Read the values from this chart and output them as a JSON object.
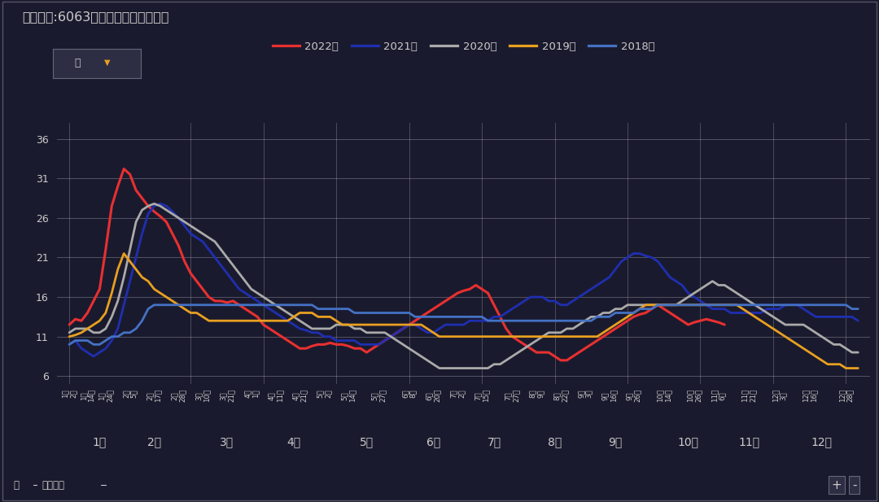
{
  "title": "平均值项:6063铝棒社会库存（万吨）",
  "background_color": "#1a1a2e",
  "text_color": "#cccccc",
  "yticks": [
    6,
    11,
    16,
    21,
    26,
    31,
    36
  ],
  "ylim": [
    5,
    38
  ],
  "n_points": 131,
  "series": [
    {
      "label": "2022年",
      "color": "#e83030",
      "linewidth": 2.2,
      "data": [
        12.5,
        13.2,
        13.0,
        14.0,
        15.5,
        17.0,
        22.0,
        27.5,
        30.0,
        32.2,
        31.5,
        29.5,
        28.5,
        27.5,
        26.8,
        26.2,
        25.5,
        24.0,
        22.5,
        20.5,
        19.0,
        18.0,
        17.0,
        16.0,
        15.5,
        15.5,
        15.3,
        15.5,
        15.0,
        14.5,
        14.0,
        13.5,
        12.5,
        12.0,
        11.5,
        11.0,
        10.5,
        10.0,
        9.5,
        9.5,
        9.8,
        10.0,
        10.0,
        10.2,
        10.0,
        10.0,
        9.8,
        9.5,
        9.5,
        9.0,
        9.5,
        10.0,
        10.5,
        11.0,
        11.5,
        12.0,
        12.5,
        13.0,
        13.5,
        14.0,
        14.5,
        15.0,
        15.5,
        16.0,
        16.5,
        16.8,
        17.0,
        17.5,
        17.0,
        16.5,
        15.0,
        13.5,
        12.0,
        11.0,
        10.5,
        10.0,
        9.5,
        9.0,
        9.0,
        9.0,
        8.5,
        8.0,
        8.0,
        8.5,
        9.0,
        9.5,
        10.0,
        10.5,
        11.0,
        11.5,
        12.0,
        12.5,
        13.0,
        13.5,
        13.8,
        14.0,
        14.5,
        15.0,
        14.5,
        14.0,
        13.5,
        13.0,
        12.5,
        12.8,
        13.0,
        13.2,
        13.0,
        12.8,
        12.5
      ]
    },
    {
      "label": "2021年",
      "color": "#1f2fb0",
      "linewidth": 2.0,
      "data": [
        10.0,
        10.5,
        9.5,
        9.0,
        8.5,
        9.0,
        9.5,
        10.5,
        12.0,
        15.0,
        18.0,
        21.0,
        24.0,
        26.5,
        27.5,
        27.8,
        27.5,
        26.8,
        26.0,
        25.0,
        24.0,
        23.5,
        23.0,
        22.0,
        21.0,
        20.0,
        19.0,
        18.0,
        17.0,
        16.5,
        16.0,
        15.5,
        15.0,
        14.5,
        14.0,
        13.5,
        13.0,
        12.5,
        12.0,
        11.8,
        11.5,
        11.5,
        11.0,
        11.0,
        10.5,
        10.5,
        10.5,
        10.5,
        10.0,
        10.0,
        10.0,
        10.0,
        10.5,
        11.0,
        11.5,
        12.0,
        12.5,
        12.5,
        12.0,
        11.5,
        11.5,
        12.0,
        12.5,
        12.5,
        12.5,
        12.5,
        13.0,
        13.0,
        13.0,
        13.0,
        13.5,
        13.5,
        14.0,
        14.5,
        15.0,
        15.5,
        16.0,
        16.0,
        16.0,
        15.5,
        15.5,
        15.0,
        15.0,
        15.5,
        16.0,
        16.5,
        17.0,
        17.5,
        18.0,
        18.5,
        19.5,
        20.5,
        21.0,
        21.5,
        21.5,
        21.2,
        21.0,
        20.5,
        19.5,
        18.5,
        18.0,
        17.5,
        16.5,
        16.0,
        15.5,
        15.0,
        14.5,
        14.5,
        14.5,
        14.0,
        14.0,
        14.0,
        14.0,
        14.0,
        14.0,
        14.5,
        14.5,
        14.5,
        15.0,
        15.0,
        15.0,
        14.5,
        14.0,
        13.5,
        13.5,
        13.5,
        13.5,
        13.5,
        13.5,
        13.5,
        13.0
      ]
    },
    {
      "label": "2020年",
      "color": "#aaaaaa",
      "linewidth": 2.0,
      "data": [
        11.5,
        12.0,
        12.0,
        12.0,
        11.5,
        11.5,
        12.0,
        13.5,
        15.5,
        18.5,
        22.0,
        25.5,
        27.0,
        27.5,
        27.8,
        27.5,
        27.0,
        26.5,
        26.0,
        25.5,
        25.0,
        24.5,
        24.0,
        23.5,
        23.0,
        22.0,
        21.0,
        20.0,
        19.0,
        18.0,
        17.0,
        16.5,
        16.0,
        15.5,
        15.0,
        14.5,
        14.0,
        13.5,
        13.0,
        12.5,
        12.0,
        12.0,
        12.0,
        12.0,
        12.5,
        12.5,
        12.5,
        12.0,
        12.0,
        11.5,
        11.5,
        11.5,
        11.5,
        11.0,
        10.5,
        10.0,
        9.5,
        9.0,
        8.5,
        8.0,
        7.5,
        7.0,
        7.0,
        7.0,
        7.0,
        7.0,
        7.0,
        7.0,
        7.0,
        7.0,
        7.5,
        7.5,
        8.0,
        8.5,
        9.0,
        9.5,
        10.0,
        10.5,
        11.0,
        11.5,
        11.5,
        11.5,
        12.0,
        12.0,
        12.5,
        13.0,
        13.5,
        13.5,
        14.0,
        14.0,
        14.5,
        14.5,
        15.0,
        15.0,
        15.0,
        15.0,
        15.0,
        15.0,
        15.0,
        15.0,
        15.0,
        15.5,
        16.0,
        16.5,
        17.0,
        17.5,
        18.0,
        17.5,
        17.5,
        17.0,
        16.5,
        16.0,
        15.5,
        15.0,
        14.5,
        14.0,
        13.5,
        13.0,
        12.5,
        12.5,
        12.5,
        12.5,
        12.0,
        11.5,
        11.0,
        10.5,
        10.0,
        10.0,
        9.5,
        9.0,
        9.0
      ]
    },
    {
      "label": "2019年",
      "color": "#e8a020",
      "linewidth": 2.0,
      "data": [
        11.0,
        11.2,
        11.5,
        12.0,
        12.5,
        13.0,
        14.0,
        16.5,
        19.5,
        21.5,
        20.5,
        19.5,
        18.5,
        18.0,
        17.0,
        16.5,
        16.0,
        15.5,
        15.0,
        14.5,
        14.0,
        14.0,
        13.5,
        13.0,
        13.0,
        13.0,
        13.0,
        13.0,
        13.0,
        13.0,
        13.0,
        13.0,
        13.0,
        13.0,
        13.0,
        13.0,
        13.0,
        13.5,
        14.0,
        14.0,
        14.0,
        13.5,
        13.5,
        13.5,
        13.0,
        12.5,
        12.5,
        12.5,
        12.5,
        12.5,
        12.5,
        12.5,
        12.5,
        12.5,
        12.5,
        12.5,
        12.5,
        12.5,
        12.5,
        12.0,
        11.5,
        11.0,
        11.0,
        11.0,
        11.0,
        11.0,
        11.0,
        11.0,
        11.0,
        11.0,
        11.0,
        11.0,
        11.0,
        11.0,
        11.0,
        11.0,
        11.0,
        11.0,
        11.0,
        11.0,
        11.0,
        11.0,
        11.0,
        11.0,
        11.0,
        11.0,
        11.0,
        11.0,
        11.5,
        12.0,
        12.5,
        13.0,
        13.5,
        14.0,
        14.5,
        15.0,
        15.0,
        15.0,
        15.0,
        15.0,
        15.0,
        15.0,
        15.0,
        15.0,
        15.0,
        15.0,
        15.0,
        15.0,
        15.0,
        15.0,
        15.0,
        14.5,
        14.0,
        13.5,
        13.0,
        12.5,
        12.0,
        11.5,
        11.0,
        10.5,
        10.0,
        9.5,
        9.0,
        8.5,
        8.0,
        7.5,
        7.5,
        7.5,
        7.0,
        7.0,
        7.0
      ]
    },
    {
      "label": "2018年",
      "color": "#4472c4",
      "linewidth": 2.0,
      "data": [
        10.0,
        10.5,
        10.5,
        10.5,
        10.0,
        10.0,
        10.5,
        11.0,
        11.0,
        11.5,
        11.5,
        12.0,
        13.0,
        14.5,
        15.0,
        15.0,
        15.0,
        15.0,
        15.0,
        15.0,
        15.0,
        15.0,
        15.0,
        15.0,
        15.0,
        15.0,
        15.0,
        15.0,
        15.0,
        15.0,
        15.0,
        15.0,
        15.0,
        15.0,
        15.0,
        15.0,
        15.0,
        15.0,
        15.0,
        15.0,
        15.0,
        14.5,
        14.5,
        14.5,
        14.5,
        14.5,
        14.5,
        14.0,
        14.0,
        14.0,
        14.0,
        14.0,
        14.0,
        14.0,
        14.0,
        14.0,
        14.0,
        13.5,
        13.5,
        13.5,
        13.5,
        13.5,
        13.5,
        13.5,
        13.5,
        13.5,
        13.5,
        13.5,
        13.5,
        13.0,
        13.0,
        13.0,
        13.0,
        13.0,
        13.0,
        13.0,
        13.0,
        13.0,
        13.0,
        13.0,
        13.0,
        13.0,
        13.0,
        13.0,
        13.0,
        13.0,
        13.0,
        13.5,
        13.5,
        13.5,
        14.0,
        14.0,
        14.0,
        14.0,
        14.5,
        14.5,
        14.5,
        15.0,
        15.0,
        15.0,
        15.0,
        15.0,
        15.0,
        15.0,
        15.0,
        15.0,
        15.0,
        15.0,
        15.0,
        15.0,
        15.0,
        15.0,
        15.0,
        15.0,
        15.0,
        15.0,
        15.0,
        15.0,
        15.0,
        15.0,
        15.0,
        15.0,
        15.0,
        15.0,
        15.0,
        15.0,
        15.0,
        15.0,
        15.0,
        14.5,
        14.5
      ]
    }
  ],
  "xtick_labels": [
    "1月\n2日",
    "1月\n14日",
    "1月\n24日",
    "2月\n5日",
    "2月\n17日",
    "2月\n28日",
    "3月\n10日",
    "3月\n21日",
    "4月\n1日",
    "4月\n11日",
    "4月\n21日",
    "5月\n2日",
    "5月\n14日",
    "5月\n27日",
    "6月\n8日",
    "6月\n20日",
    "7月\n2日",
    "7月\n15日",
    "7月\n27日",
    "8月\n9日",
    "8月\n22日",
    "9月\n3日",
    "9月\n16日",
    "9月\n26日",
    "10月\n14日",
    "10月\n26日",
    "11月\n6日",
    "11月\n21日",
    "12月\n3日",
    "12月\n16日",
    "12月\n28日"
  ],
  "xtick_positions": [
    0,
    3,
    6,
    10,
    14,
    18,
    22,
    26,
    30,
    34,
    38,
    42,
    46,
    51,
    56,
    60,
    64,
    68,
    73,
    77,
    81,
    85,
    89,
    93,
    98,
    103,
    107,
    112,
    117,
    122,
    128
  ],
  "month_label_data": [
    [
      5,
      "1月"
    ],
    [
      14,
      "2月"
    ],
    [
      26,
      "3月"
    ],
    [
      37,
      "4月"
    ],
    [
      49,
      "5月"
    ],
    [
      60,
      "6月"
    ],
    [
      70,
      "7月"
    ],
    [
      80,
      "8月"
    ],
    [
      90,
      "9月"
    ],
    [
      102,
      "10月"
    ],
    [
      112,
      "11月"
    ],
    [
      124,
      "12月"
    ]
  ],
  "month_vlines": [
    0,
    20,
    32,
    44,
    56,
    68,
    80,
    92,
    104,
    116,
    128
  ],
  "footer_left": "月    指标名称",
  "filter_label": "年"
}
